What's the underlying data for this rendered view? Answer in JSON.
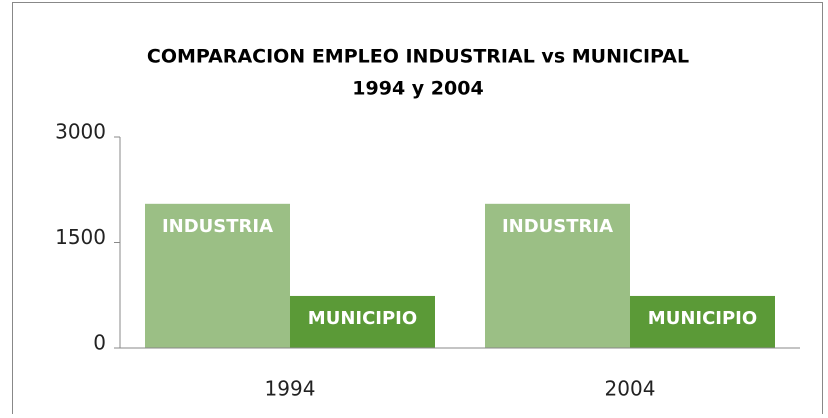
{
  "chart_data": {
    "type": "bar",
    "title": [
      "COMPARACION EMPLEO INDUSTRIAL vs MUNICIPAL",
      "1994 y 2004"
    ],
    "categories": [
      "1994",
      "2004"
    ],
    "series": [
      {
        "name": "INDUSTRIA",
        "color": "#9bbf85",
        "values": [
          2050,
          2050
        ]
      },
      {
        "name": "MUNICIPIO",
        "color": "#5b9a37",
        "values": [
          740,
          740
        ]
      }
    ],
    "ylim": [
      0,
      3000
    ],
    "yticks": [
      0,
      1500,
      3000
    ]
  }
}
